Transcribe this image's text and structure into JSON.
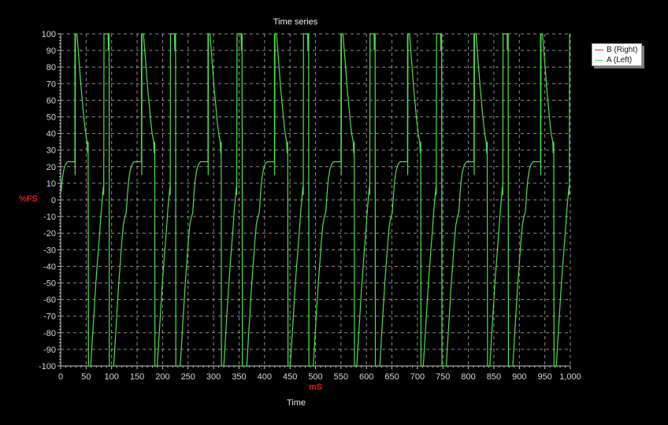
{
  "chart_data": {
    "type": "line",
    "title": "Time series",
    "xlabel": "Time",
    "xunit": "mS",
    "ylabel": "%FS",
    "xlim": [
      0,
      1000
    ],
    "ylim": [
      -100,
      100
    ],
    "grid": true,
    "legend_position": "top-right (outside plot)",
    "x_ticks": [
      "0",
      "50",
      "100",
      "150",
      "200",
      "250",
      "300",
      "350",
      "400",
      "450",
      "500",
      "550",
      "600",
      "650",
      "700",
      "750",
      "800",
      "850",
      "900",
      "950",
      "1,000"
    ],
    "y_ticks": [
      "100",
      "90",
      "80",
      "70",
      "60",
      "50",
      "40",
      "30",
      "20",
      "10",
      "0",
      "-10",
      "-20",
      "-30",
      "-40",
      "-50",
      "-60",
      "-70",
      "-80",
      "-90",
      "-100"
    ],
    "series": [
      {
        "name": "B (Right)",
        "color": "#c83030",
        "values": []
      },
      {
        "name": "A (Left)",
        "color": "#4ee04e",
        "description": "Clipped sawtooth-like waveform, period ~130 mS (two alternating half-cycles), saturating at +100 and -100 %FS",
        "cycle_period_ms": 130.5,
        "cycle_start_ms": -2,
        "cycle_template": [
          [
            0,
            -8
          ],
          [
            1,
            -4
          ],
          [
            3,
            5
          ],
          [
            5,
            12
          ],
          [
            8,
            18
          ],
          [
            11,
            21
          ],
          [
            14,
            22.5
          ],
          [
            16,
            23
          ],
          [
            30,
            23
          ],
          [
            30,
            100
          ],
          [
            30.5,
            15
          ],
          [
            31,
            100
          ],
          [
            34,
            100
          ],
          [
            36,
            92
          ],
          [
            39,
            80
          ],
          [
            42,
            68
          ],
          [
            45,
            58
          ],
          [
            48,
            48
          ],
          [
            51,
            40
          ],
          [
            54,
            35
          ],
          [
            55,
            28
          ],
          [
            56,
            35
          ],
          [
            56.5,
            -100
          ],
          [
            61,
            -100
          ],
          [
            62,
            -95
          ],
          [
            64,
            -85
          ],
          [
            67,
            -70
          ],
          [
            70,
            -55
          ],
          [
            73,
            -42
          ],
          [
            76,
            -30
          ],
          [
            79,
            -18
          ],
          [
            82,
            -5
          ],
          [
            85,
            5
          ],
          [
            86,
            8
          ],
          [
            86.5,
            3
          ],
          [
            87,
            100
          ],
          [
            95,
            100
          ],
          [
            95.5,
            90
          ],
          [
            96,
            100
          ],
          [
            97,
            100
          ],
          [
            97.5,
            -100
          ],
          [
            106,
            -100
          ],
          [
            107,
            -96
          ],
          [
            110,
            -80
          ],
          [
            113,
            -65
          ],
          [
            116,
            -50
          ],
          [
            119,
            -38
          ],
          [
            122,
            -25
          ],
          [
            125,
            -15
          ],
          [
            128,
            -10
          ],
          [
            130.5,
            -8
          ]
        ],
        "key_points": [
          {
            "x": 0,
            "y": -5
          },
          {
            "x": 28,
            "y": 23
          },
          {
            "x": 29,
            "y": 100
          },
          {
            "x": 56,
            "y": 35
          },
          {
            "x": 57,
            "y": -100
          },
          {
            "x": 93,
            "y": 8
          },
          {
            "x": 96,
            "y": 100
          },
          {
            "x": 107,
            "y": -100
          },
          {
            "x": 160,
            "y": 23
          },
          {
            "x": 187,
            "y": -100
          },
          {
            "x": 240,
            "y": -100
          },
          {
            "x": 295,
            "y": 23
          },
          {
            "x": 370,
            "y": -100
          },
          {
            "x": 425,
            "y": 23
          },
          {
            "x": 505,
            "y": -100
          },
          {
            "x": 555,
            "y": 23
          },
          {
            "x": 640,
            "y": -100
          },
          {
            "x": 690,
            "y": 23
          },
          {
            "x": 730,
            "y": -100
          },
          {
            "x": 825,
            "y": 23
          },
          {
            "x": 870,
            "y": -100
          },
          {
            "x": 960,
            "y": 23
          },
          {
            "x": 1000,
            "y": 25
          }
        ]
      }
    ]
  },
  "legend": {
    "items": [
      {
        "label": "B (Right)",
        "color": "#c83030"
      },
      {
        "label": "A (Left)",
        "color": "#4ee04e"
      }
    ]
  },
  "colors": {
    "background": "#000000",
    "grid": "#bcbcbc",
    "axis": "#c8c8c8",
    "trace_a": "#4ee04e",
    "unit_label": "#d42020"
  }
}
